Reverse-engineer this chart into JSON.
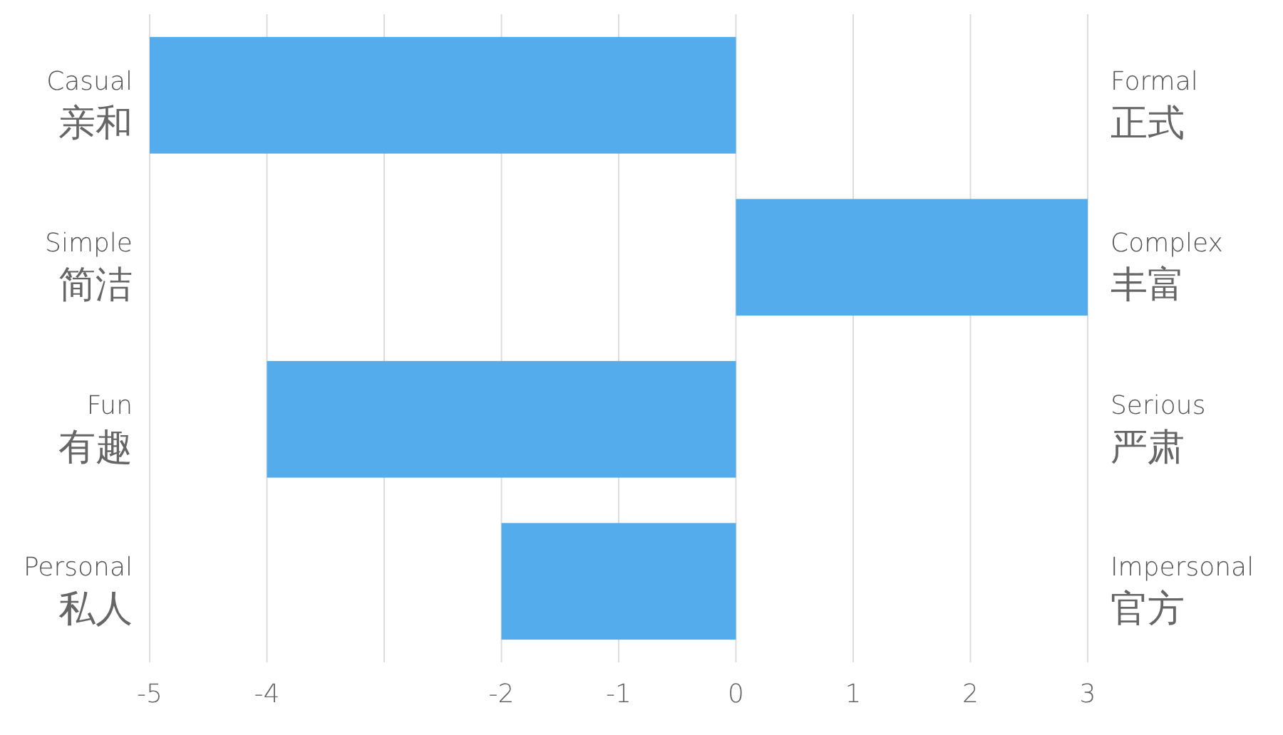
{
  "chart_data": {
    "type": "bar",
    "orientation": "horizontal",
    "categories": [
      "Casual\n亲和",
      "Simple\n简洁",
      "Fun\n有趣",
      "Personal\n私人"
    ],
    "y2_categories": [
      "Formal\n正式",
      "Complex\n丰富",
      "Serious\n严肃",
      "Impersonal\n官方"
    ],
    "values": [
      -5,
      3,
      -4,
      -2
    ],
    "color": "#55acec",
    "xlim": [
      -5,
      3
    ],
    "xticks": [
      -5,
      -4,
      {
        "value": -3,
        "label": null
      },
      -2,
      -1,
      0,
      1,
      2,
      3
    ],
    "grid": "x"
  }
}
